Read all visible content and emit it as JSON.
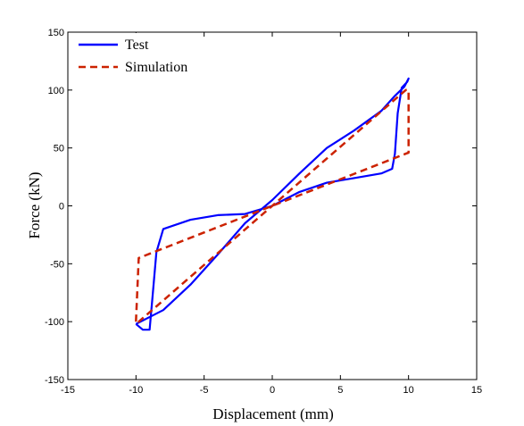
{
  "chart_data": {
    "type": "line",
    "title": "",
    "xlabel": "Displacement (mm)",
    "ylabel": "Force (kN)",
    "xlim": [
      -15,
      15
    ],
    "ylim": [
      -150,
      150
    ],
    "xticks": [
      -15,
      -10,
      -5,
      0,
      5,
      10,
      15
    ],
    "yticks": [
      -150,
      -100,
      -50,
      0,
      50,
      100,
      150
    ],
    "grid": false,
    "legend_position": "top-left",
    "series": [
      {
        "name": "Test",
        "color": "#0000ff",
        "style": "solid",
        "x": [
          -10,
          -9.5,
          -9,
          -8.8,
          -8.5,
          -8,
          -6,
          -4,
          -2,
          0,
          2,
          4,
          6,
          8,
          8.8,
          9,
          9.2,
          9.5,
          9.9,
          10,
          9.7,
          9,
          8,
          6,
          4,
          2,
          0,
          -2,
          -4,
          -6,
          -8,
          -10
        ],
        "y": [
          -102,
          -107,
          -107,
          -80,
          -40,
          -20,
          -12,
          -8,
          -7,
          0,
          12,
          20,
          24,
          28,
          32,
          45,
          80,
          102,
          107,
          110,
          103,
          95,
          82,
          65,
          50,
          28,
          5,
          -15,
          -42,
          -68,
          -90,
          -102
        ]
      },
      {
        "name": "Simulation",
        "color": "#cc2200",
        "style": "dashed",
        "x": [
          -10,
          -10,
          -9.8,
          0,
          9.8,
          10,
          10,
          9.8,
          0,
          -9.8,
          -10
        ],
        "y": [
          -100,
          -100,
          -45,
          0,
          45,
          46,
          100,
          100,
          0,
          -100,
          -100
        ]
      }
    ]
  }
}
